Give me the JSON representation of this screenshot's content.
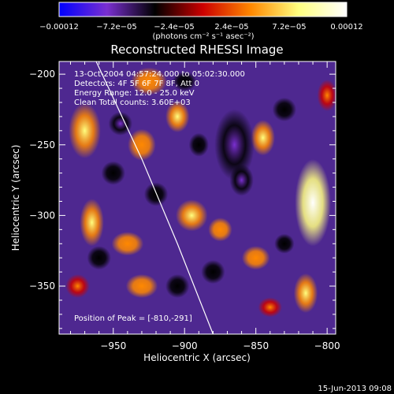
{
  "chart_data": {
    "type": "heatmap",
    "title": "Reconstructed RHESSI Image",
    "xlabel": "Heliocentric X (arcsec)",
    "ylabel": "Heliocentric Y (arcsec)",
    "xlim": [
      -988,
      -794
    ],
    "ylim": [
      -384,
      -191
    ],
    "xticks": [
      -950,
      -900,
      -850,
      -800
    ],
    "xtick_labels": [
      "-950",
      "-900",
      "-850",
      "-800"
    ],
    "yticks": [
      -200,
      -250,
      -300,
      -350
    ],
    "ytick_labels": [
      "-200",
      "-250",
      "-300",
      "-350"
    ],
    "colorbar": {
      "min": -0.00012,
      "max": 0.00012,
      "tick_labels": [
        "-0.00012",
        "-7.2e-05",
        "-2.4e-05",
        "2.4e-05",
        "7.2e-05",
        "0.00012"
      ],
      "units": "(photons cm⁻² s⁻¹ asec⁻²)",
      "colormap": [
        "#0000ff",
        "#7a2fd0",
        "#000000",
        "#cc0000",
        "#ff8800",
        "#ffff80",
        "#ffffff"
      ]
    },
    "annotations": [
      "13-Oct-2004 04:57:24.000 to 05:02:30.000",
      "Detectors: 4F 5F 6F 7F 8F, Att 0",
      "Energy Range: 12.0 - 25.0 keV",
      "Clean     Total counts: 3.60E+03",
      "Position of Peak = [-810,-291]"
    ],
    "footer_timestamp": "15-Jun-2013 09:08",
    "peak": {
      "x": -810,
      "y": -291
    },
    "limb_curve": [
      [
        -962,
        -191
      ],
      [
        -930,
        -260
      ],
      [
        -905,
        -320
      ],
      [
        -880,
        -384
      ]
    ],
    "blobs": [
      {
        "x": -970,
        "y": -240,
        "rx": 8,
        "ry": 14,
        "v": 8.5e-05
      },
      {
        "x": -965,
        "y": -305,
        "rx": 6,
        "ry": 12,
        "v": 6.5e-05
      },
      {
        "x": -925,
        "y": -205,
        "rx": 9,
        "ry": 7,
        "v": 5.5e-05
      },
      {
        "x": -930,
        "y": -250,
        "rx": 7,
        "ry": 8,
        "v": 4e-05
      },
      {
        "x": -905,
        "y": -230,
        "rx": 6,
        "ry": 8,
        "v": 6.5e-05
      },
      {
        "x": -895,
        "y": -300,
        "rx": 8,
        "ry": 8,
        "v": 6.5e-05
      },
      {
        "x": -940,
        "y": -320,
        "rx": 8,
        "ry": 6,
        "v": 4e-05
      },
      {
        "x": -930,
        "y": -350,
        "rx": 8,
        "ry": 6,
        "v": 4e-05
      },
      {
        "x": -845,
        "y": -245,
        "rx": 6,
        "ry": 9,
        "v": 7e-05
      },
      {
        "x": -875,
        "y": -310,
        "rx": 6,
        "ry": 6,
        "v": 5e-05
      },
      {
        "x": -850,
        "y": -330,
        "rx": 7,
        "ry": 6,
        "v": 4.5e-05
      },
      {
        "x": -810,
        "y": -291,
        "rx": 9,
        "ry": 22,
        "v": 0.00012
      },
      {
        "x": -815,
        "y": -355,
        "rx": 6,
        "ry": 10,
        "v": 6e-05
      },
      {
        "x": -840,
        "y": -365,
        "rx": 6,
        "ry": 5,
        "v": 3.5e-05
      },
      {
        "x": -975,
        "y": -350,
        "rx": 6,
        "ry": 6,
        "v": 3.5e-05
      },
      {
        "x": -800,
        "y": -215,
        "rx": 5,
        "ry": 8,
        "v": 3.5e-05
      },
      {
        "x": -865,
        "y": -250,
        "rx": 10,
        "ry": 18,
        "v": -0.0001
      },
      {
        "x": -860,
        "y": -275,
        "rx": 6,
        "ry": 8,
        "v": -7e-05
      },
      {
        "x": -945,
        "y": -235,
        "rx": 6,
        "ry": 6,
        "v": -7e-05
      },
      {
        "x": -950,
        "y": -270,
        "rx": 6,
        "ry": 6,
        "v": -6e-05
      },
      {
        "x": -890,
        "y": -250,
        "rx": 5,
        "ry": 6,
        "v": -5e-05
      },
      {
        "x": -960,
        "y": -330,
        "rx": 6,
        "ry": 6,
        "v": -5e-05
      },
      {
        "x": -905,
        "y": -350,
        "rx": 6,
        "ry": 6,
        "v": -5e-05
      },
      {
        "x": -880,
        "y": -340,
        "rx": 6,
        "ry": 6,
        "v": -4.5e-05
      },
      {
        "x": -830,
        "y": -225,
        "rx": 6,
        "ry": 6,
        "v": -4.5e-05
      },
      {
        "x": -830,
        "y": -320,
        "rx": 5,
        "ry": 5,
        "v": -4e-05
      },
      {
        "x": -900,
        "y": -205,
        "rx": 6,
        "ry": 5,
        "v": -4e-05
      },
      {
        "x": -920,
        "y": -285,
        "rx": 6,
        "ry": 6,
        "v": -4e-05
      }
    ]
  }
}
